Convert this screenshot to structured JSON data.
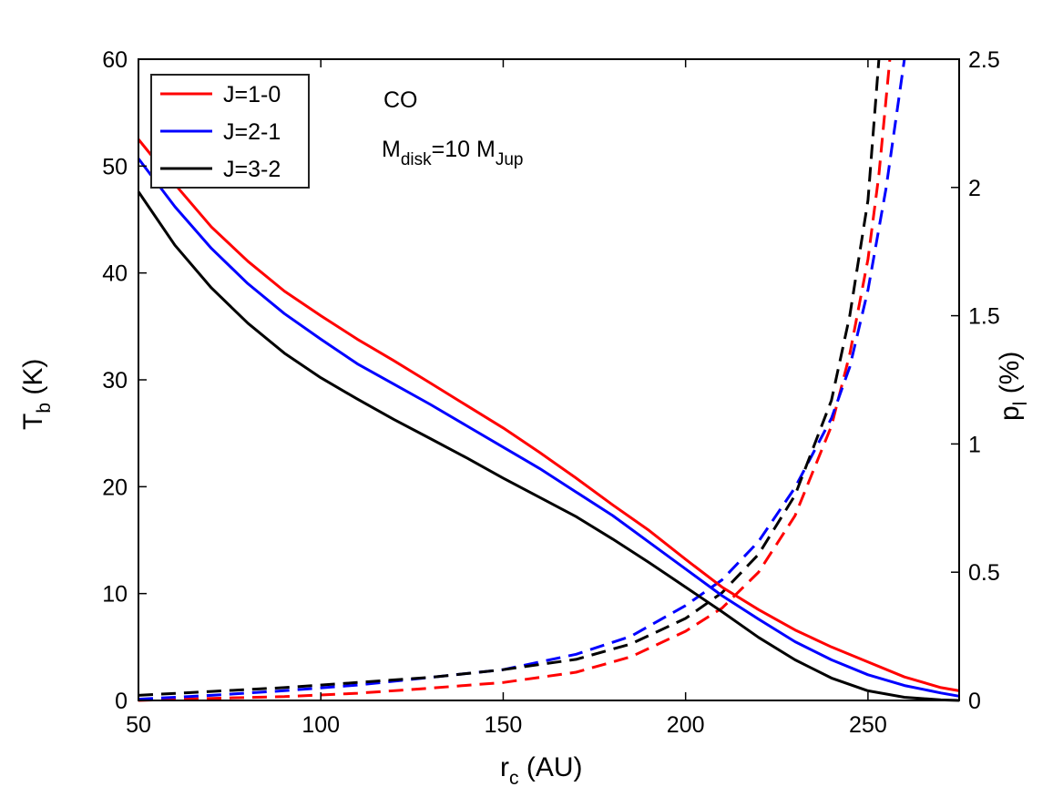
{
  "chart_data": {
    "type": "line",
    "x_label_main": "r",
    "x_label_sub": "c",
    "x_label_unit": " (AU)",
    "y_left_label_main": "T",
    "y_left_label_sub": "b",
    "y_left_label_unit": " (K)",
    "y_right_label_main": "p",
    "y_right_label_sub": "l",
    "y_right_label_unit": " (%)",
    "xlim": [
      50,
      275
    ],
    "ylim_left": [
      0,
      60
    ],
    "ylim_right": [
      0,
      2.5
    ],
    "x_ticks": [
      "50",
      "100",
      "150",
      "200",
      "250"
    ],
    "y_left_ticks": [
      "0",
      "10",
      "20",
      "30",
      "40",
      "50",
      "60"
    ],
    "y_right_ticks": [
      "0",
      "0.5",
      "1",
      "1.5",
      "2",
      "2.5"
    ],
    "annotation": {
      "species": "CO",
      "mass_prefix": "M",
      "mass_sub": "disk",
      "mass_value": "=10 M",
      "mass_unit_sub": "Jup"
    },
    "legend": [
      {
        "label": "J=1-0",
        "color": "#ff0000"
      },
      {
        "label": "J=2-1",
        "color": "#0000ff"
      },
      {
        "label": "J=3-2",
        "color": "#000000"
      }
    ],
    "series_tb": [
      {
        "name": "J=1-0",
        "color": "#ff0000",
        "axis": "left",
        "style": "solid",
        "x": [
          50,
          60,
          70,
          80,
          90,
          100,
          110,
          120,
          130,
          140,
          150,
          160,
          170,
          180,
          190,
          200,
          210,
          220,
          230,
          240,
          250,
          260,
          270,
          275
        ],
        "y": [
          52.5,
          48.3,
          44.3,
          41.1,
          38.3,
          36.0,
          33.8,
          31.8,
          29.7,
          27.6,
          25.5,
          23.2,
          20.8,
          18.3,
          15.9,
          13.2,
          10.6,
          8.5,
          6.6,
          5.0,
          3.6,
          2.2,
          1.2,
          0.9
        ]
      },
      {
        "name": "J=2-1",
        "color": "#0000ff",
        "axis": "left",
        "style": "solid",
        "x": [
          50,
          60,
          70,
          80,
          90,
          100,
          110,
          120,
          130,
          140,
          150,
          160,
          170,
          180,
          190,
          200,
          210,
          220,
          230,
          240,
          250,
          260,
          270,
          275
        ],
        "y": [
          50.7,
          46.2,
          42.3,
          39.0,
          36.2,
          33.8,
          31.5,
          29.6,
          27.7,
          25.7,
          23.7,
          21.7,
          19.5,
          17.3,
          14.8,
          12.3,
          9.8,
          7.6,
          5.5,
          3.8,
          2.4,
          1.4,
          0.7,
          0.4
        ]
      },
      {
        "name": "J=3-2",
        "color": "#000000",
        "axis": "left",
        "style": "solid",
        "x": [
          50,
          60,
          70,
          80,
          90,
          100,
          110,
          120,
          130,
          140,
          150,
          160,
          170,
          180,
          190,
          200,
          210,
          220,
          230,
          240,
          250,
          260,
          270,
          275
        ],
        "y": [
          47.6,
          42.6,
          38.6,
          35.3,
          32.5,
          30.2,
          28.2,
          26.3,
          24.5,
          22.7,
          20.8,
          19.0,
          17.2,
          15.1,
          12.9,
          10.6,
          8.3,
          5.9,
          3.8,
          2.1,
          0.9,
          0.3,
          0.05,
          0.0
        ]
      }
    ],
    "series_pl": [
      {
        "name": "J=1-0 p_l",
        "color": "#ff0000",
        "axis": "right",
        "style": "dashed",
        "x": [
          50,
          70,
          90,
          110,
          130,
          150,
          170,
          185,
          200,
          210,
          220,
          230,
          240,
          245,
          250,
          253,
          256
        ],
        "y": [
          0.0,
          0.008,
          0.015,
          0.028,
          0.048,
          0.07,
          0.11,
          0.17,
          0.27,
          0.36,
          0.5,
          0.72,
          1.07,
          1.35,
          1.72,
          2.05,
          2.5
        ]
      },
      {
        "name": "J=2-1 p_l",
        "color": "#0000ff",
        "axis": "right",
        "style": "dashed",
        "x": [
          50,
          70,
          90,
          110,
          130,
          150,
          170,
          185,
          200,
          210,
          220,
          230,
          240,
          245,
          250,
          255,
          258,
          260
        ],
        "y": [
          0.005,
          0.02,
          0.038,
          0.06,
          0.09,
          0.12,
          0.18,
          0.25,
          0.37,
          0.47,
          0.62,
          0.83,
          1.1,
          1.3,
          1.6,
          2.0,
          2.3,
          2.5
        ]
      },
      {
        "name": "J=3-2 p_l",
        "color": "#000000",
        "axis": "right",
        "style": "dashed",
        "x": [
          50,
          70,
          90,
          110,
          130,
          150,
          170,
          185,
          200,
          210,
          220,
          230,
          240,
          245,
          250,
          253
        ],
        "y": [
          0.02,
          0.035,
          0.05,
          0.07,
          0.09,
          0.12,
          0.16,
          0.22,
          0.32,
          0.42,
          0.57,
          0.8,
          1.17,
          1.5,
          1.95,
          2.5
        ]
      }
    ]
  }
}
